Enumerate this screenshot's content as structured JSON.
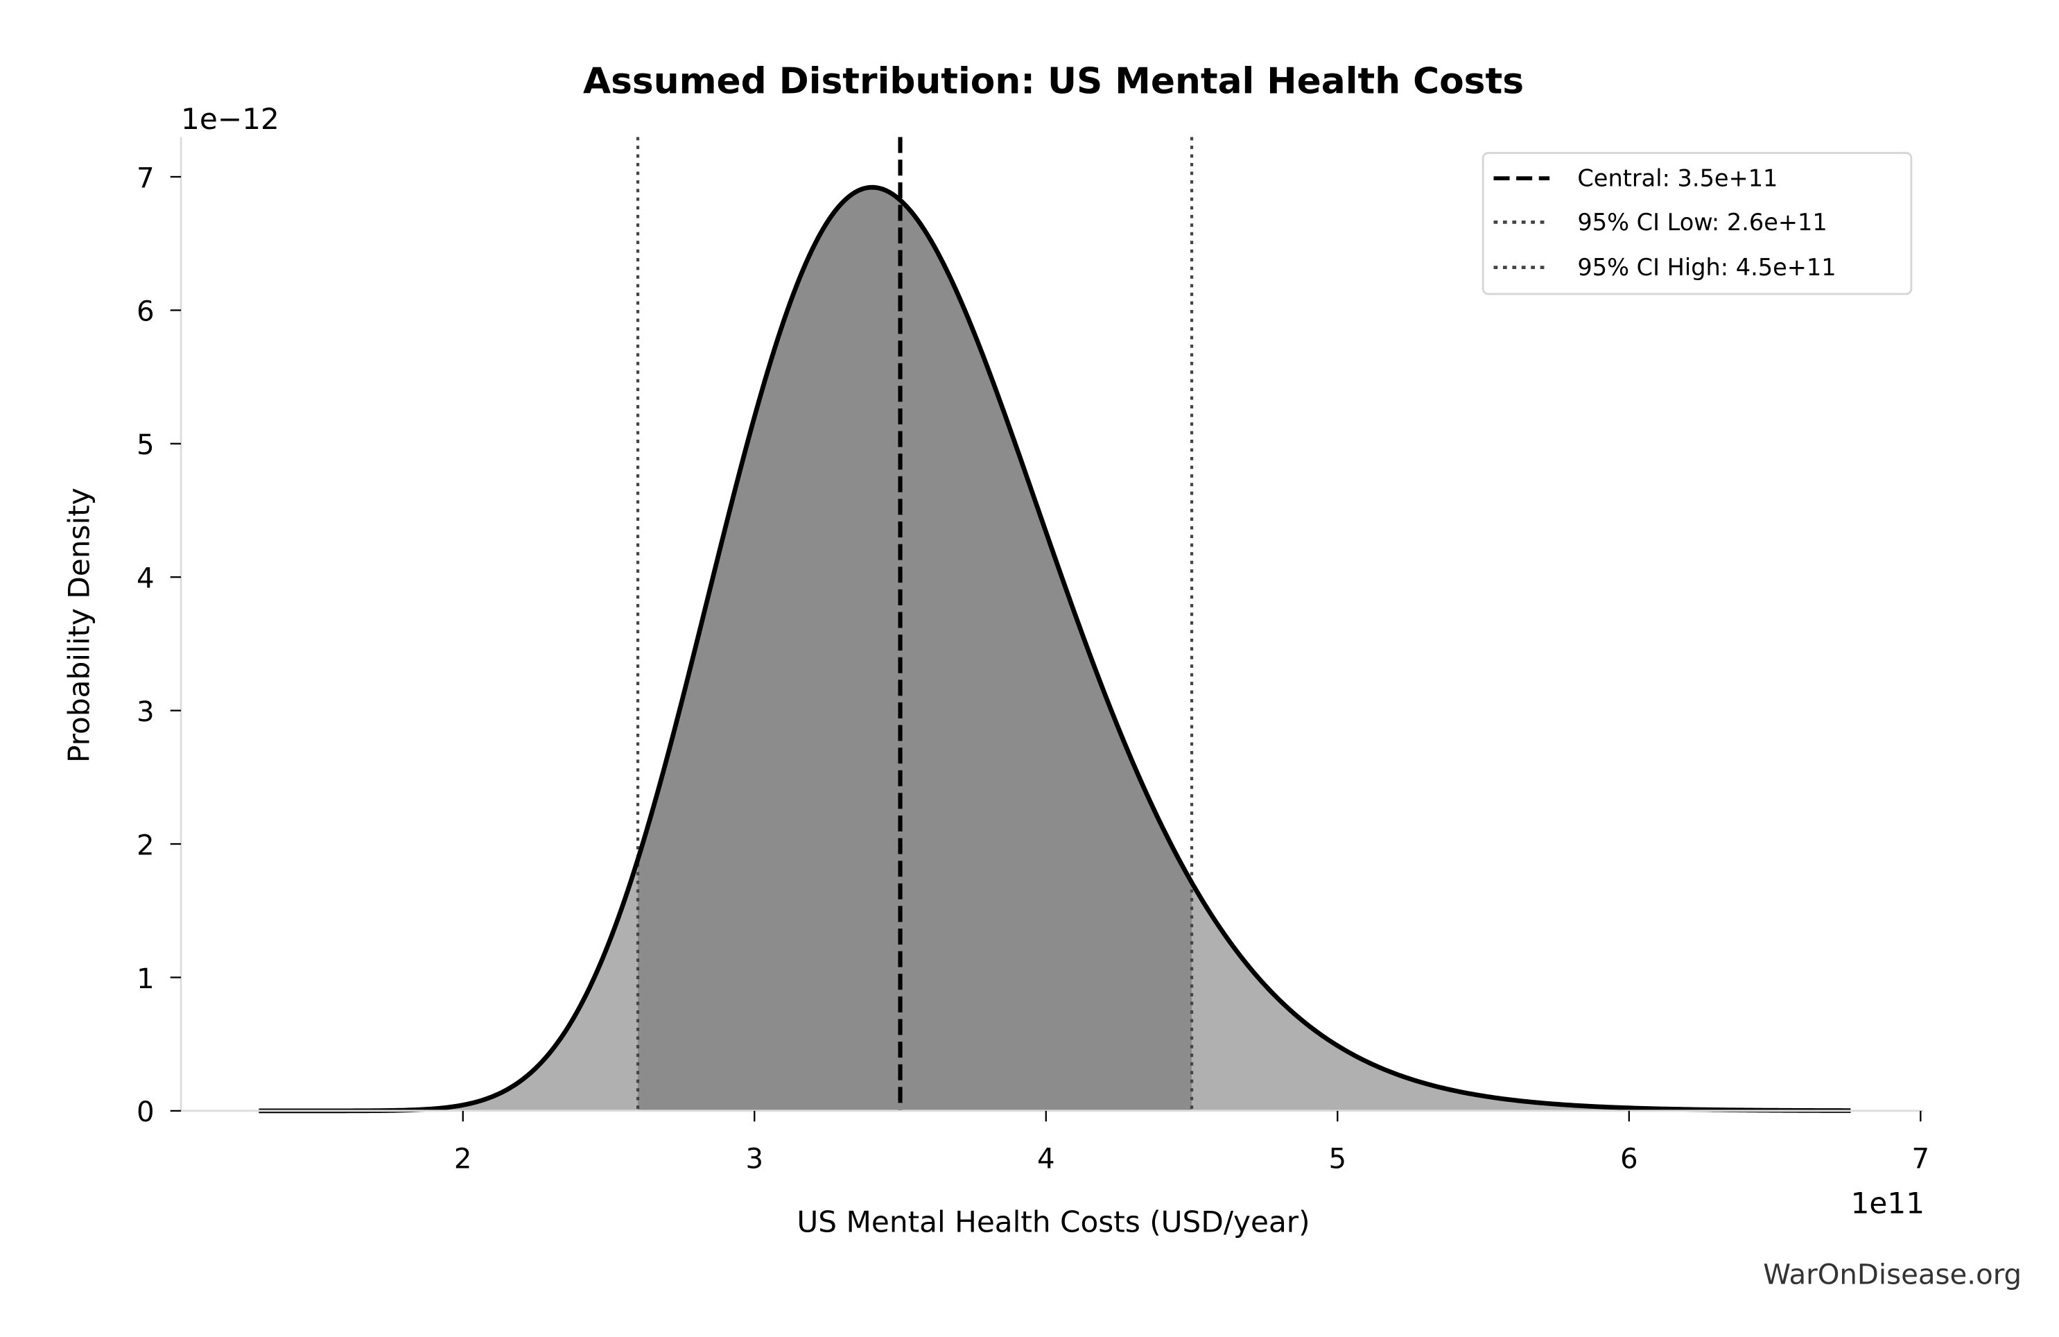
{
  "chart_data": {
    "type": "area",
    "title": "Assumed Distribution: US Mental Health Costs",
    "xlabel": "US Mental Health Costs (USD/year)",
    "ylabel": "Probability Density",
    "x_offset_label": "1e11",
    "y_offset_label": "1e−12",
    "xlim": [
      1.0,
      7.0
    ],
    "ylim": [
      0,
      7.3
    ],
    "x_ticks": [
      "2",
      "3",
      "4",
      "5",
      "6",
      "7"
    ],
    "x_tick_values": [
      2,
      3,
      4,
      5,
      6,
      7
    ],
    "y_ticks": [
      "0",
      "1",
      "2",
      "3",
      "4",
      "5",
      "6",
      "7"
    ],
    "y_tick_values": [
      0,
      1,
      2,
      3,
      4,
      5,
      6,
      7
    ],
    "distribution": {
      "kind": "lognormal",
      "median": 3.5,
      "sigma": 0.167,
      "x_range": [
        1.3,
        6.76
      ],
      "peak_x": 3.41,
      "peak_density": 6.93
    },
    "series": [
      {
        "name": "density",
        "x": [
          1.3,
          1.5,
          1.8,
          2.0,
          2.2,
          2.4,
          2.6,
          2.8,
          3.0,
          3.2,
          3.41,
          3.6,
          3.8,
          4.0,
          4.2,
          4.5,
          4.8,
          5.0,
          5.5,
          6.0,
          6.76
        ],
        "y": [
          0.0,
          0.0,
          0.02,
          0.1,
          0.4,
          0.95,
          1.89,
          3.3,
          4.9,
          6.2,
          6.93,
          6.8,
          6.0,
          4.9,
          3.8,
          2.2,
          1.1,
          0.48,
          0.12,
          0.03,
          0.0
        ]
      }
    ],
    "vlines": [
      {
        "label": "Central: 3.5e+11",
        "x": 3.5,
        "style": "dashed",
        "color": "#000000"
      },
      {
        "label": "95% CI Low: 2.6e+11",
        "x": 2.6,
        "style": "dotted",
        "color": "#444444"
      },
      {
        "label": "95% CI High: 4.5e+11",
        "x": 4.5,
        "style": "dotted",
        "color": "#444444"
      }
    ],
    "fill_colors": {
      "outer": "#b0b0b0",
      "inner_ci": "#8c8c8c",
      "curve": "#000000"
    },
    "legend_position": "top-right",
    "grid": false
  },
  "watermark": "WarOnDisease.org"
}
